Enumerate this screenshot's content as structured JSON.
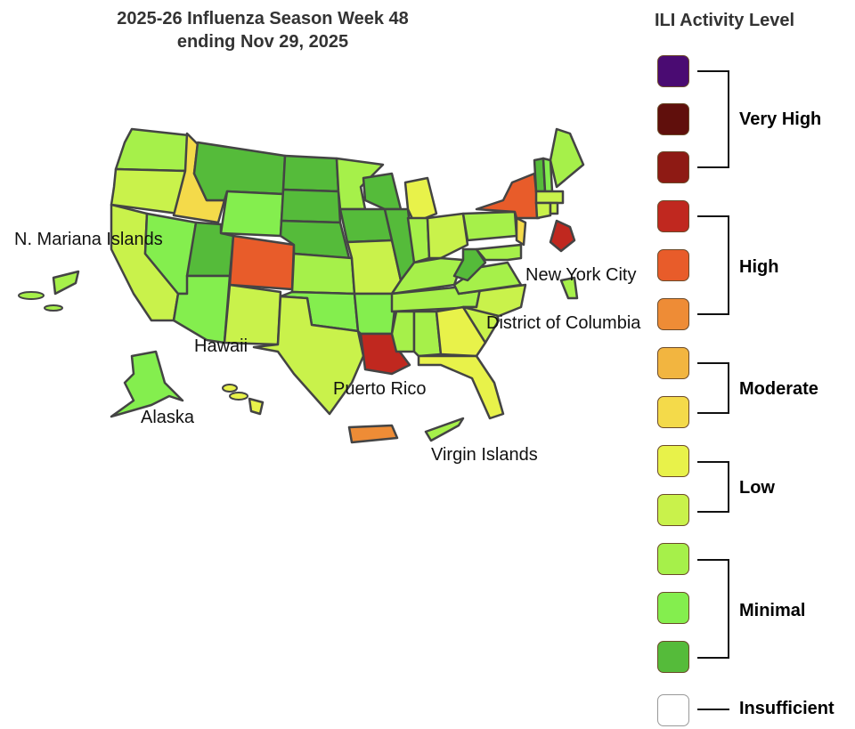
{
  "title": {
    "line1": "2025-26 Influenza Season Week 48",
    "line2": "ending Nov 29, 2025"
  },
  "legend": {
    "title": "ILI Activity Level",
    "levels": [
      {
        "level": 13,
        "color": "#4a0b72"
      },
      {
        "level": 12,
        "color": "#600f0c"
      },
      {
        "level": 11,
        "color": "#8e1a14"
      },
      {
        "level": 10,
        "color": "#c0281f"
      },
      {
        "level": 9,
        "color": "#e85c2a"
      },
      {
        "level": 8,
        "color": "#ee8c36"
      },
      {
        "level": 7,
        "color": "#f2b540"
      },
      {
        "level": 6,
        "color": "#f4da4a"
      },
      {
        "level": 5,
        "color": "#e8f24a"
      },
      {
        "level": 4,
        "color": "#c9f24b"
      },
      {
        "level": 3,
        "color": "#a6f04a"
      },
      {
        "level": 2,
        "color": "#84ee4e"
      },
      {
        "level": 1,
        "color": "#55bb3a"
      },
      {
        "level": 0,
        "color": "#ffffff"
      }
    ],
    "groups": {
      "very_high": "Very High",
      "high": "High",
      "moderate": "Moderate",
      "low": "Low",
      "minimal": "Minimal",
      "insufficient": "Insufficient"
    }
  },
  "labels": {
    "mp": "N. Mariana Islands",
    "hi": "Hawaii",
    "ak": "Alaska",
    "pr": "Puerto Rico",
    "vi": "Virgin Islands",
    "nyc": "New York City",
    "dc": "District of Columbia"
  },
  "state_levels": {
    "WA": 3,
    "OR": 4,
    "CA": 4,
    "ID": 6,
    "NV": 2,
    "MT": 1,
    "WY": 2,
    "UT": 1,
    "AZ": 2,
    "CO": 9,
    "NM": 4,
    "ND": 1,
    "SD": 1,
    "NE": 1,
    "KS": 3,
    "OK": 2,
    "TX": 4,
    "MN": 3,
    "IA": 1,
    "MO": 4,
    "AR": 2,
    "LA": 10,
    "WI": 1,
    "IL": 1,
    "MI": 5,
    "IN": 3,
    "OH": 4,
    "KY": 3,
    "TN": 3,
    "MS": 3,
    "AL": 3,
    "GA": 5,
    "FL": 5,
    "SC": 4,
    "NC": 4,
    "VA": 3,
    "WV": 1,
    "PA": 3,
    "NY": 9,
    "NJ": 6,
    "MD": 3,
    "VT": 1,
    "NH": 2,
    "ME": 3,
    "MA": 4,
    "CT": 4,
    "RI": 4,
    "DC": 10,
    "NYC": 3,
    "AK": 2,
    "HI": 5,
    "PR": 8,
    "VI": 3,
    "MP": 3
  }
}
